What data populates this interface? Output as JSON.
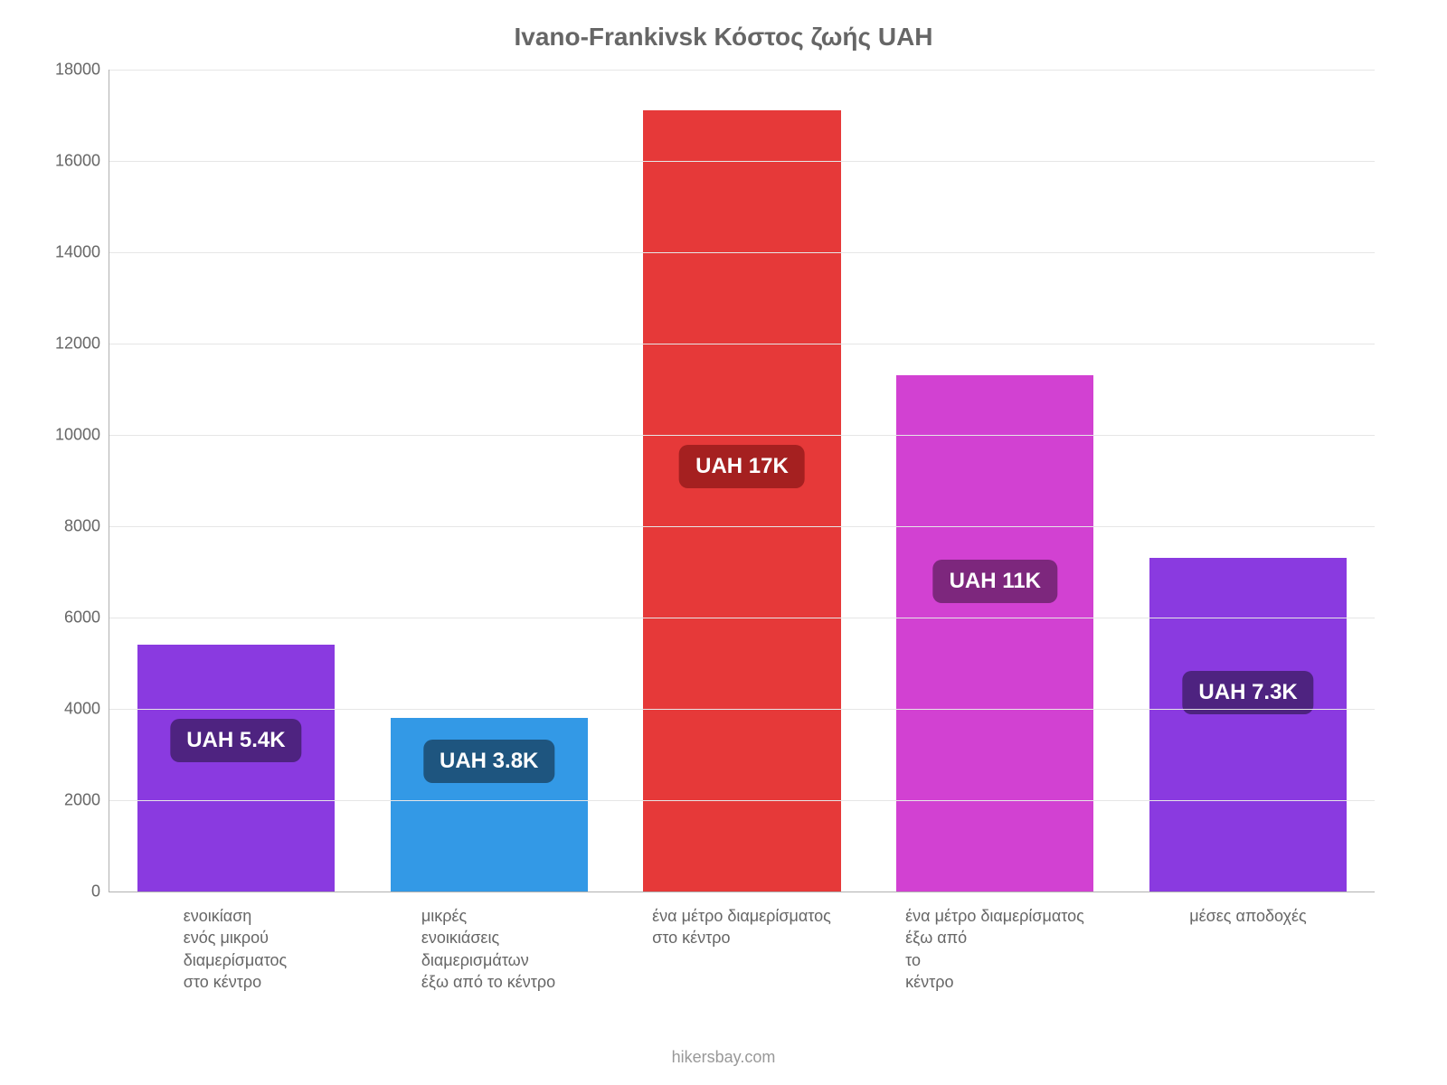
{
  "chart": {
    "type": "bar",
    "title": "Ivano-Frankivsk Κόστος ζωής UAH",
    "title_fontsize": 28,
    "title_color": "#666666",
    "background_color": "#ffffff",
    "grid_color": "#e6e6e6",
    "axis_color": "#b0b0b0",
    "ylim_min": 0,
    "ylim_max": 18000,
    "ytick_step": 2000,
    "yticks": [
      0,
      2000,
      4000,
      6000,
      8000,
      10000,
      12000,
      14000,
      16000,
      18000
    ],
    "y_tick_fontsize": 18,
    "y_tick_color": "#666666",
    "x_label_fontsize": 18,
    "x_label_color": "#666666",
    "bar_width_pct": 78,
    "badge_fontsize": 24,
    "badge_radius": 10,
    "badge_text_color": "#ffffff",
    "categories": [
      {
        "label_lines": [
          "ενοικίαση",
          "ενός μικρού",
          "διαμερίσματος",
          "στο κέντρο"
        ],
        "value": 5400,
        "value_label": "UAH 5.4K",
        "bar_color": "#8a3ae0",
        "badge_color": "#4e2380",
        "badge_y_value": 3300
      },
      {
        "label_lines": [
          "μικρές",
          "ενοικιάσεις",
          "διαμερισμάτων",
          "έξω από το κέντρο"
        ],
        "value": 3800,
        "value_label": "UAH 3.8K",
        "bar_color": "#3399e6",
        "badge_color": "#1e557f",
        "badge_y_value": 2850
      },
      {
        "label_lines": [
          "ένα μέτρο διαμερίσματος",
          "στο κέντρο"
        ],
        "value": 17100,
        "value_label": "UAH 17K",
        "bar_color": "#e63939",
        "badge_color": "#a52020",
        "badge_y_value": 9300
      },
      {
        "label_lines": [
          "ένα μέτρο διαμερίσματος",
          "έξω από",
          "το",
          "κέντρο"
        ],
        "value": 11300,
        "value_label": "UAH 11K",
        "bar_color": "#d241d2",
        "badge_color": "#7d277d",
        "badge_y_value": 6800
      },
      {
        "label_lines": [
          "μέσες αποδοχές"
        ],
        "value": 7300,
        "value_label": "UAH 7.3K",
        "bar_color": "#8a3ae0",
        "badge_color": "#4e2380",
        "badge_y_value": 4350
      }
    ],
    "credit": "hikersbay.com",
    "credit_fontsize": 18,
    "credit_color": "#999999"
  }
}
